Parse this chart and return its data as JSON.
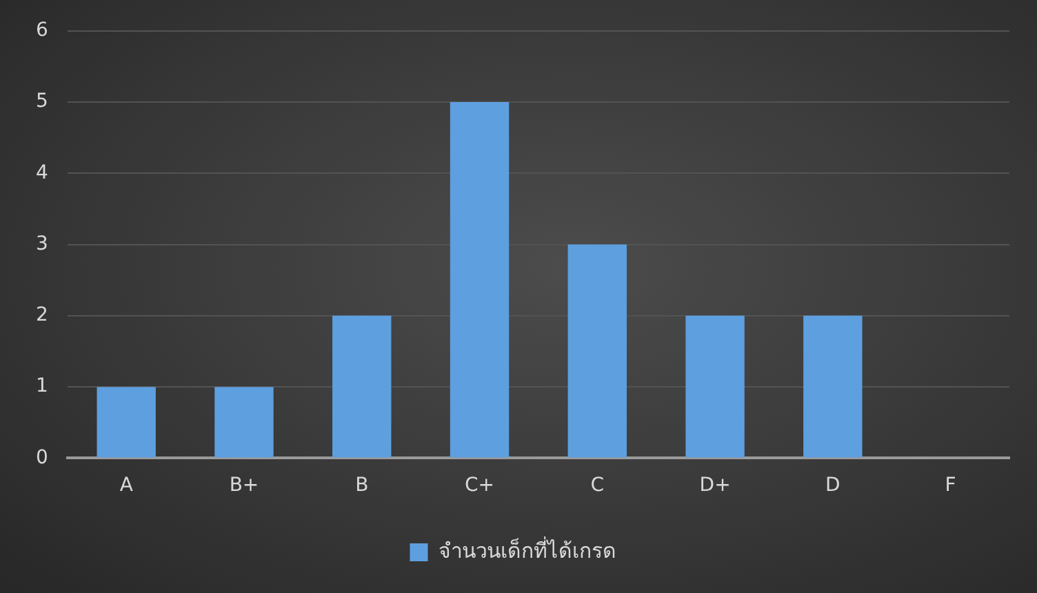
{
  "chart_data": {
    "type": "bar",
    "categories": [
      "A",
      "B+",
      "B",
      "C+",
      "C",
      "D+",
      "D",
      "F"
    ],
    "series": [
      {
        "name": "จำนวนเด็กที่ได้เกรด",
        "color": "#5e9fdf",
        "values": [
          1,
          1,
          2,
          5,
          3,
          2,
          2,
          0
        ]
      }
    ],
    "ylim": [
      0,
      6
    ],
    "yticks": [
      0,
      1,
      2,
      3,
      4,
      5,
      6
    ],
    "grid": "y",
    "legend": "bottom"
  }
}
